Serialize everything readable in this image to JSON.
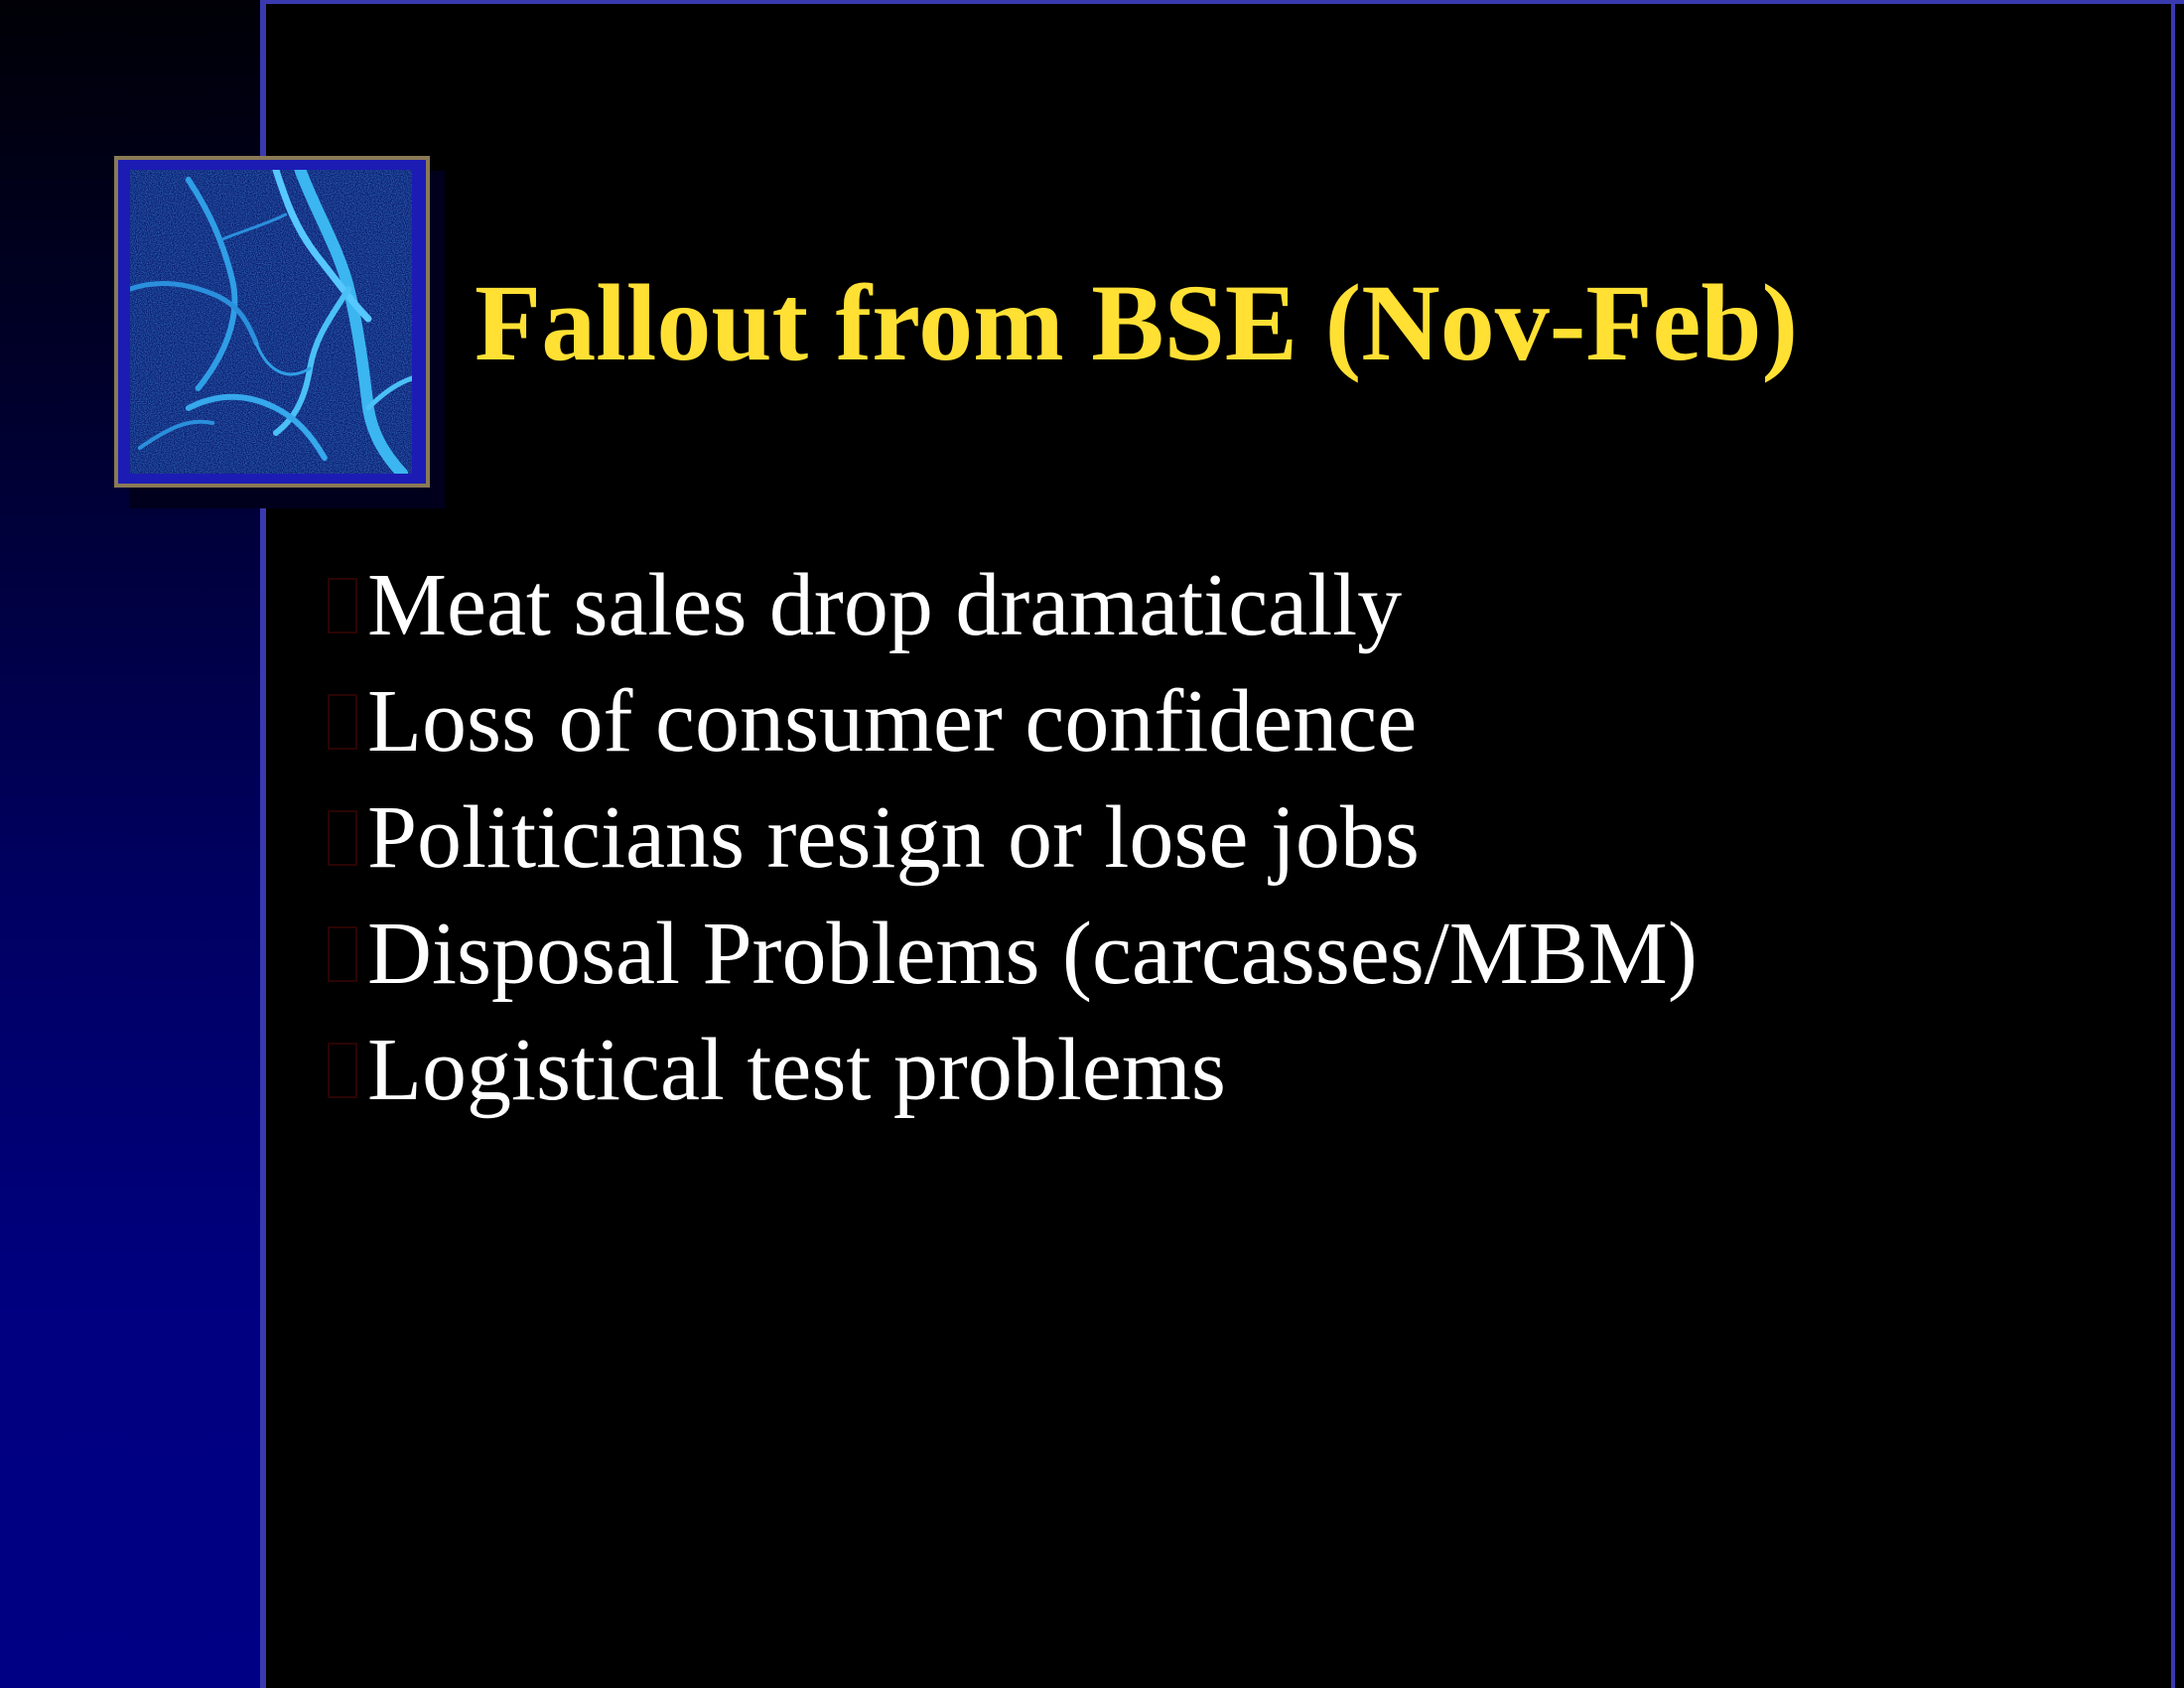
{
  "slide": {
    "title": "Fallout from BSE (Nov-Feb)",
    "bullets": [
      "Meat sales drop dramatically",
      "Loss of consumer confidence",
      "Politicians resign or lose jobs",
      "Disposal Problems (carcasses/MBM)",
      "Logistical test problems"
    ],
    "emblem_icon": "blue-marble-texture-icon",
    "bullet_icon": "square-bullet-icon"
  },
  "colors": {
    "title": "#ffe033",
    "body_text": "#ffffff",
    "background": "#000000",
    "side_band": "#000084",
    "rule": "#3a3ab0",
    "emblem_frame": "#8a7a55"
  }
}
